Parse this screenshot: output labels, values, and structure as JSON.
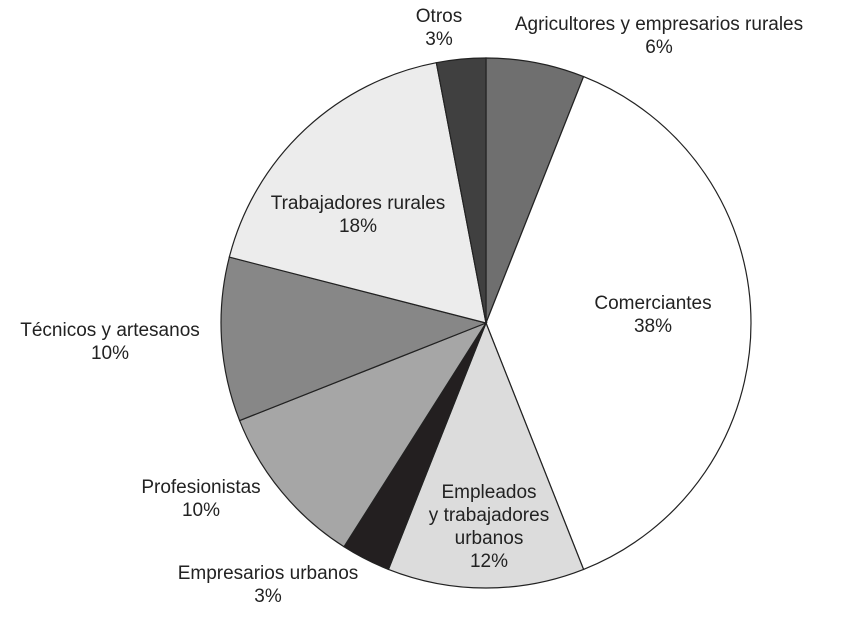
{
  "chart_data": {
    "type": "pie",
    "title": "",
    "start_angle_deg": 0,
    "direction": "clockwise",
    "slices": [
      {
        "name": "Agricultores y empresarios rurales",
        "pct_label": "6%",
        "value": 6,
        "color": "#6f6f6f",
        "label_lines": [
          "Agricultores y empresarios rurales",
          "6%"
        ]
      },
      {
        "name": "Comerciantes",
        "pct_label": "38%",
        "value": 38,
        "color": "#ffffff",
        "label_lines": [
          "Comerciantes",
          "38%"
        ]
      },
      {
        "name": "Empleados y trabajadores urbanos",
        "pct_label": "12%",
        "value": 12,
        "color": "#dcdcdc",
        "label_lines": [
          "Empleados",
          "y trabajadores",
          "urbanos",
          "12%"
        ]
      },
      {
        "name": "Empresarios urbanos",
        "pct_label": "3%",
        "value": 3,
        "color": "#231f20",
        "label_lines": [
          "Empresarios urbanos",
          "3%"
        ]
      },
      {
        "name": "Profesionistas",
        "pct_label": "10%",
        "value": 10,
        "color": "#a6a6a6",
        "label_lines": [
          "Profesionistas",
          "10%"
        ]
      },
      {
        "name": "Técnicos y artesanos",
        "pct_label": "10%",
        "value": 10,
        "color": "#878787",
        "label_lines": [
          "Técnicos y artesanos",
          "10%"
        ]
      },
      {
        "name": "Trabajadores rurales",
        "pct_label": "18%",
        "value": 18,
        "color": "#ececec",
        "label_lines": [
          "Trabajadores rurales",
          "18%"
        ]
      },
      {
        "name": "Otros",
        "pct_label": "3%",
        "value": 3,
        "color": "#404040",
        "label_lines": [
          "Otros",
          "3%"
        ]
      }
    ]
  }
}
